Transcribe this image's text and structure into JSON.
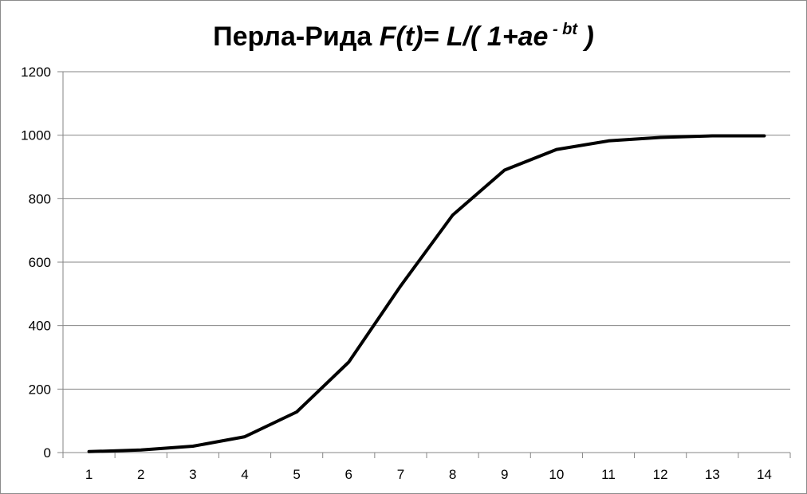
{
  "chart_data": {
    "type": "line",
    "title": {
      "prefix": "Перла-Рида ",
      "formula_main": "F(t)= L/( 1+ae",
      "formula_sup": " - bt",
      "formula_end": " )"
    },
    "xlabel": "",
    "ylabel": "",
    "x": [
      1,
      2,
      3,
      4,
      5,
      6,
      7,
      8,
      9,
      10,
      11,
      12,
      13,
      14
    ],
    "categories": [
      "1",
      "2",
      "3",
      "4",
      "5",
      "6",
      "7",
      "8",
      "9",
      "10",
      "11",
      "12",
      "13",
      "14"
    ],
    "series": [
      {
        "values": [
          3,
          8,
          20,
          50,
          128,
          285,
          525,
          748,
          890,
          955,
          982,
          993,
          998,
          998
        ],
        "color": "#000000"
      }
    ],
    "ylim": [
      0,
      1200
    ],
    "yticks": [
      0,
      200,
      400,
      600,
      800,
      1000,
      1200
    ],
    "ytick_labels": [
      "0",
      "200",
      "400",
      "600",
      "800",
      "1000",
      "1200"
    ],
    "grid": "horizontal",
    "legend": "none"
  }
}
